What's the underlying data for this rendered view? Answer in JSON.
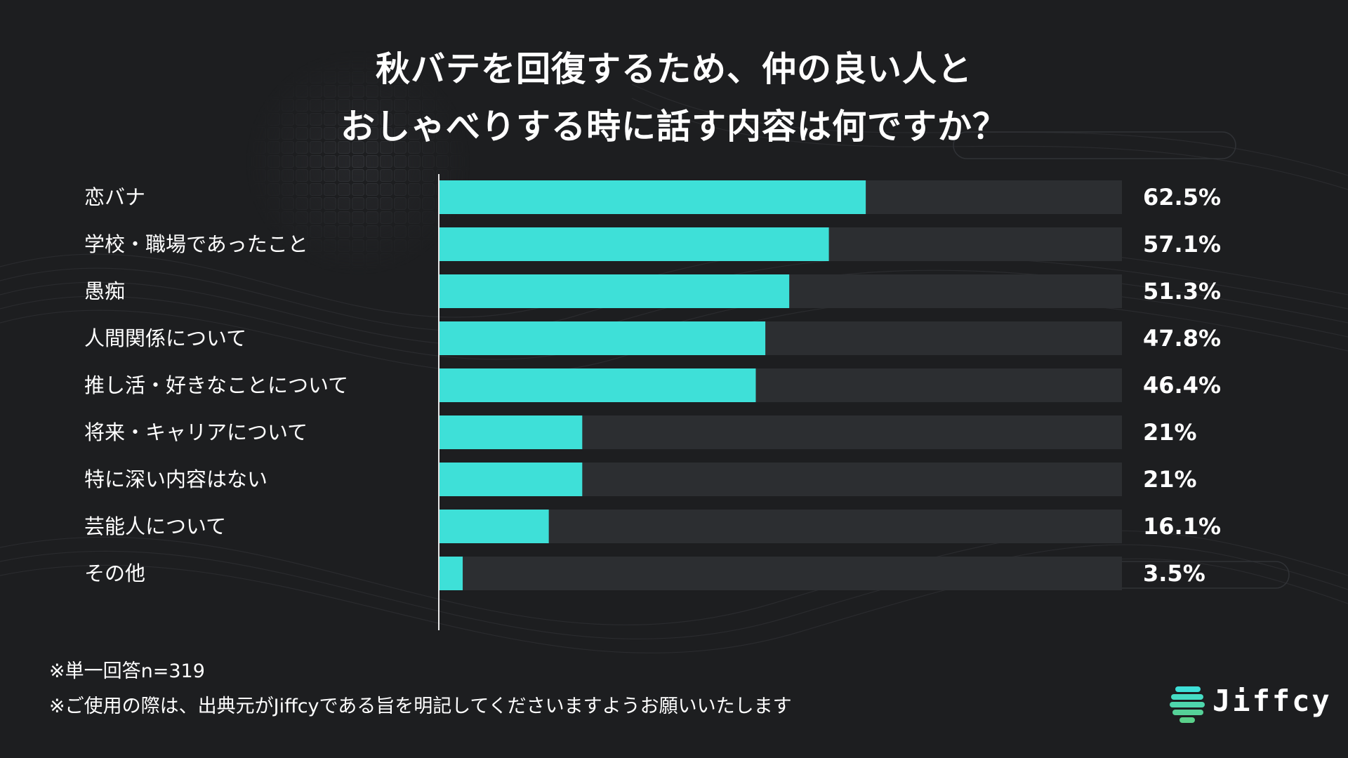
{
  "title_lines": [
    "秋バテを回復するため、仲の良い人と",
    "おしゃべりする時に話す内容は何ですか？"
  ],
  "chart_data": {
    "type": "bar",
    "orientation": "horizontal",
    "categories": [
      "恋バナ",
      "学校・職場であったこと",
      "愚痴",
      "人間関係について",
      "推し活・好きなことについて",
      "将来・キャリアについて",
      "特に深い内容はない",
      "芸能人について",
      "その他"
    ],
    "values": [
      62.5,
      57.1,
      51.3,
      47.8,
      46.4,
      21,
      21,
      16.1,
      3.5
    ],
    "value_labels": [
      "62.5%",
      "57.1%",
      "51.3%",
      "47.8%",
      "46.4%",
      "21%",
      "21%",
      "16.1%",
      "3.5%"
    ],
    "xlim": [
      0,
      100
    ],
    "grid": false,
    "colors": {
      "bar": "#3ee0d8",
      "track": "#2c2e31"
    }
  },
  "notes": [
    "※単一回答n=319",
    "※ご使用の際は、出典元がJiffcyである旨を明記してくださいますようお願いいたします"
  ],
  "brand": {
    "name": "Jiffcy",
    "icon": "jiffcy-logo-icon",
    "colors": [
      "#3ee0d8",
      "#5ad08a"
    ]
  }
}
